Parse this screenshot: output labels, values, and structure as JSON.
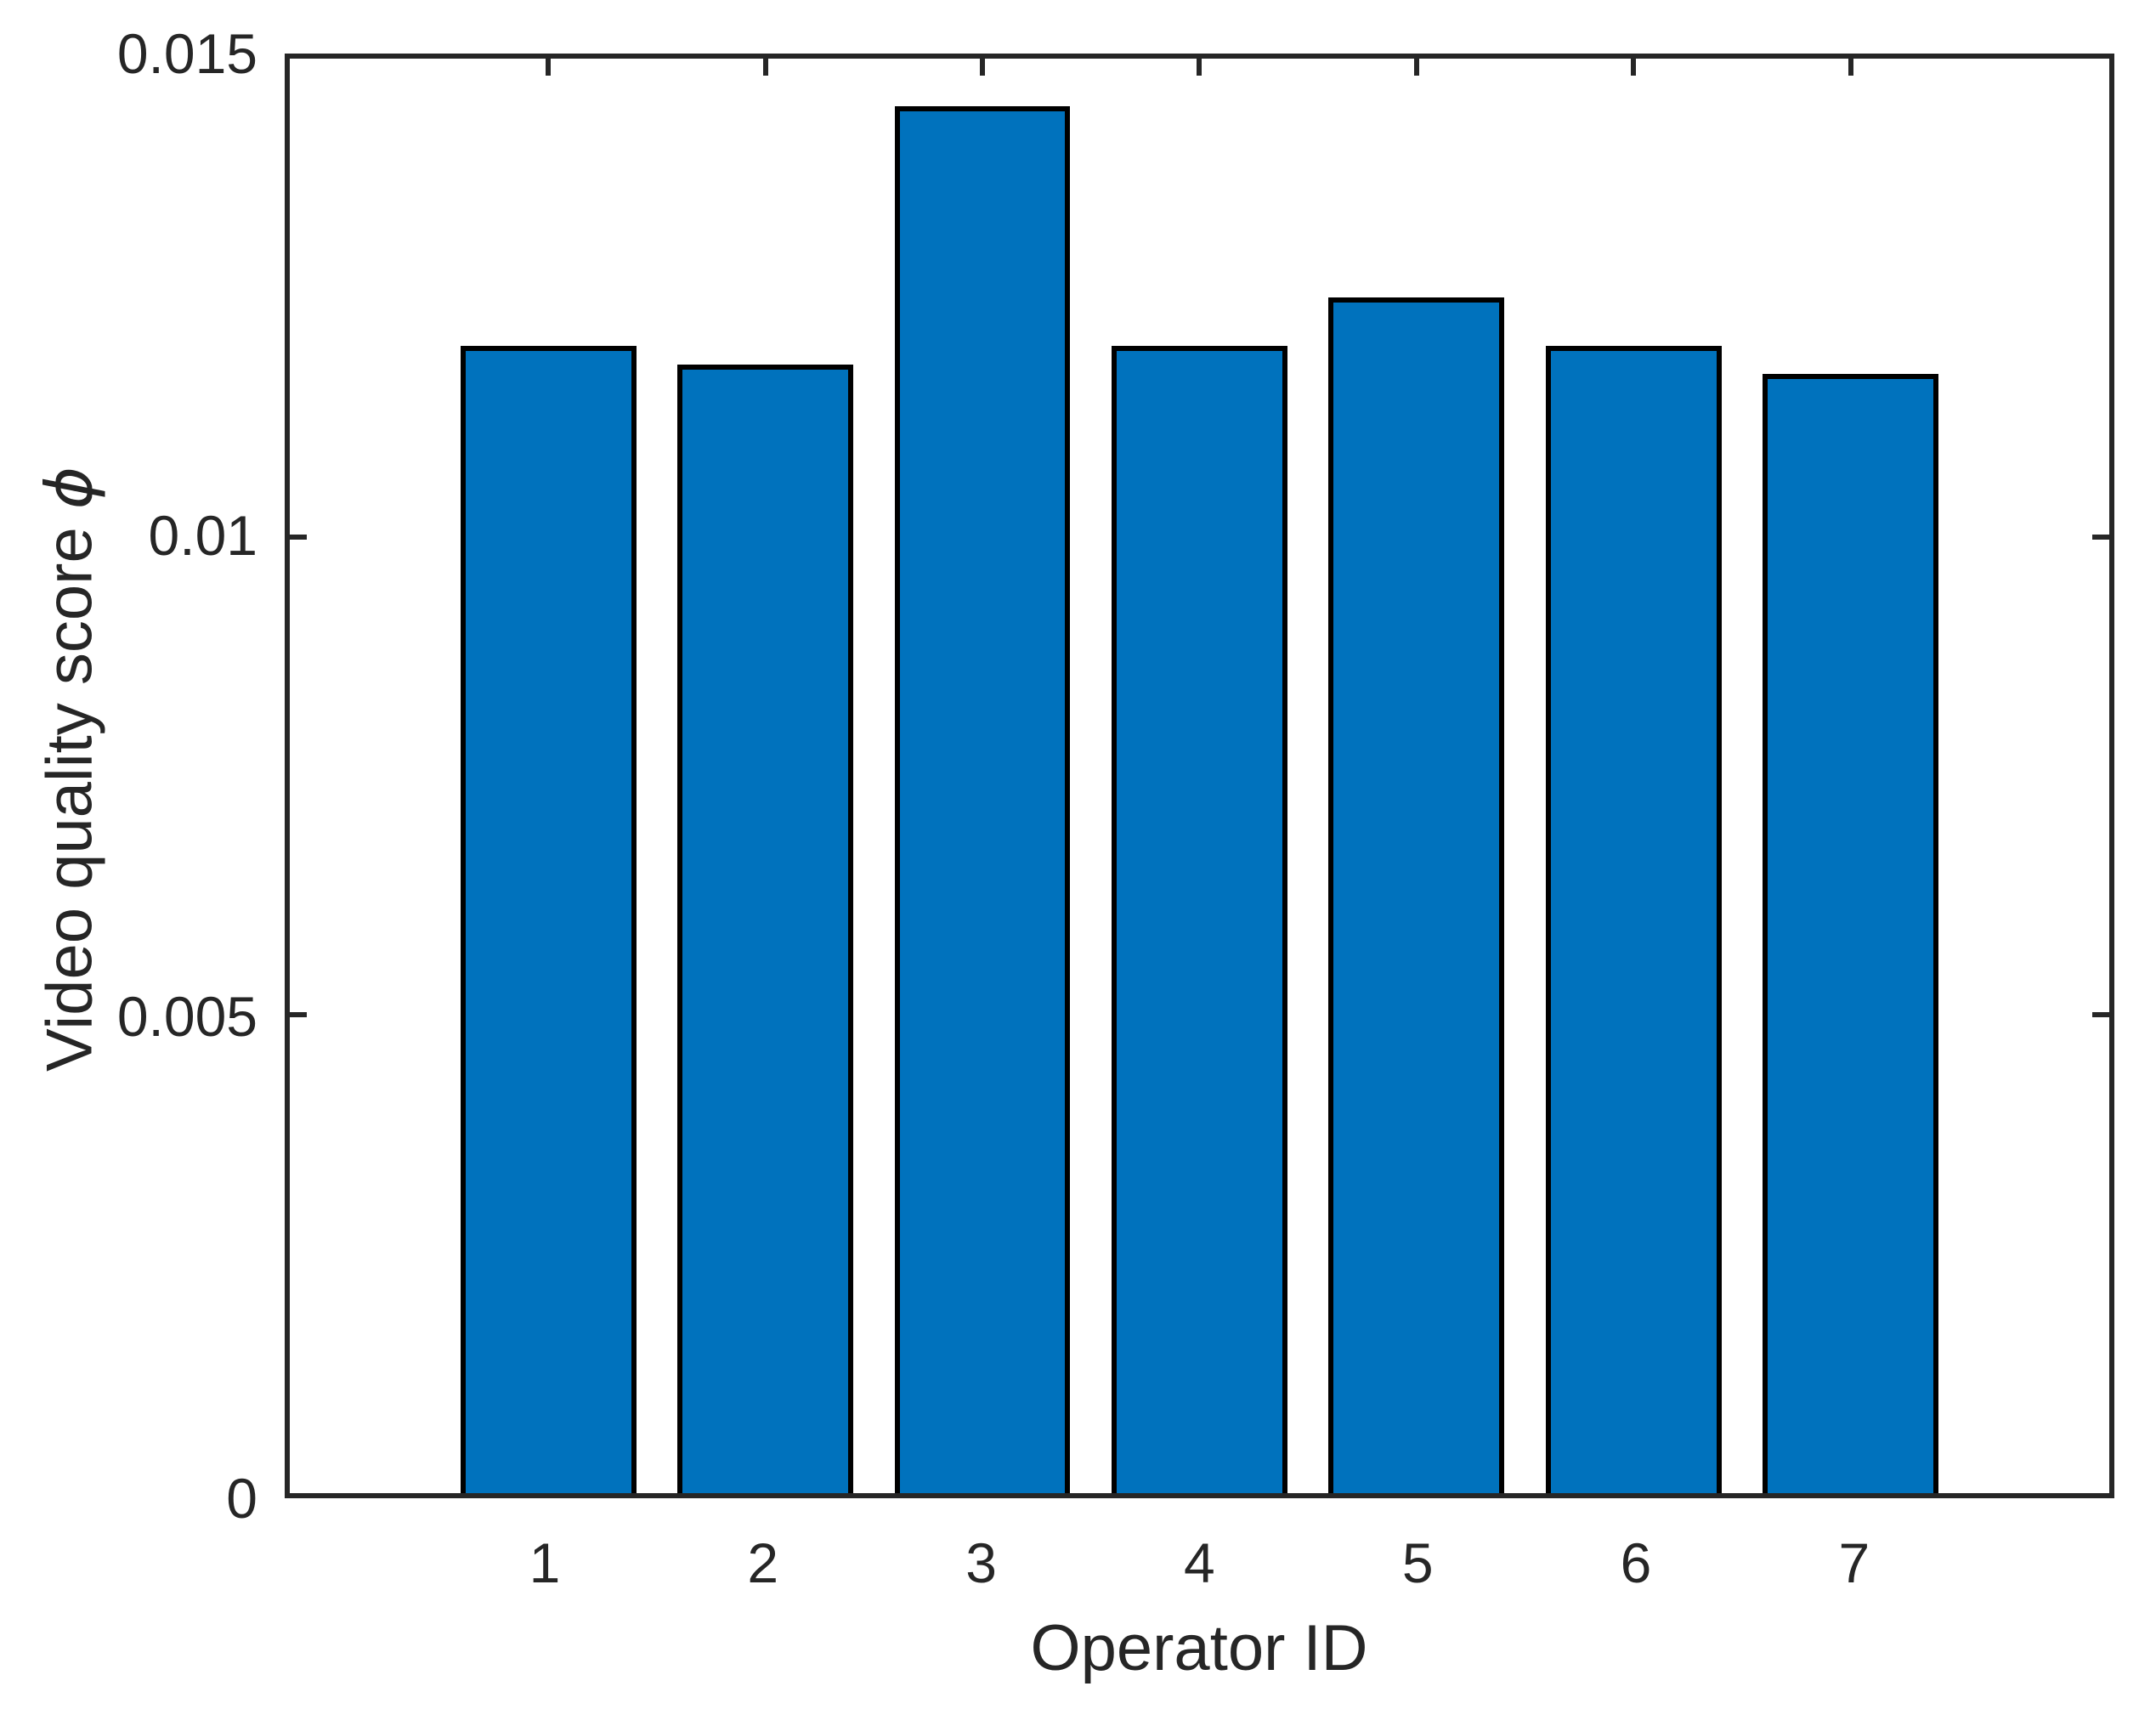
{
  "chart_data": {
    "type": "bar",
    "categories": [
      "1",
      "2",
      "3",
      "4",
      "5",
      "6",
      "7"
    ],
    "values": [
      0.012,
      0.0118,
      0.0145,
      0.012,
      0.0125,
      0.012,
      0.0117
    ],
    "title": "",
    "xlabel": "Operator ID",
    "ylabel": "Video quality score ϕ",
    "ylabel_prefix": "Video quality score ",
    "ylabel_symbol": "ϕ",
    "ylim": [
      0,
      0.015
    ],
    "yticks": [
      0,
      0.005,
      0.01,
      0.015
    ],
    "ytick_labels": [
      "0",
      "0.005",
      "0.01",
      "0.015"
    ],
    "grid": false,
    "legend": "none",
    "bar_width_fraction": 0.8,
    "colors": {
      "bar_fill": "#0072BD",
      "bar_edge": "#000000",
      "axis": "#262626",
      "text": "#262626",
      "background": "#ffffff"
    }
  }
}
